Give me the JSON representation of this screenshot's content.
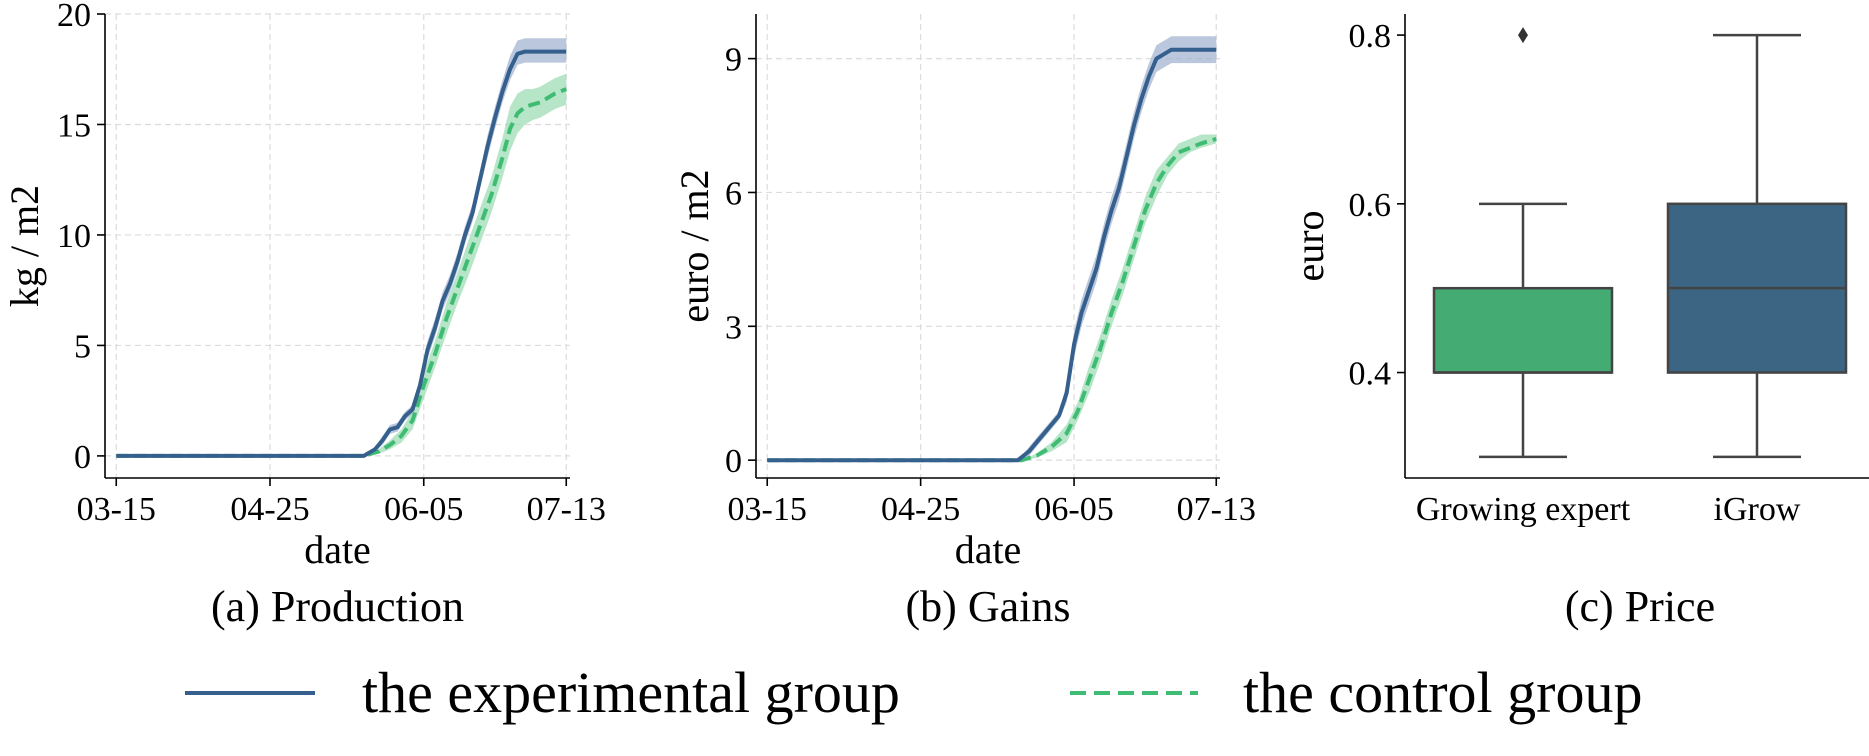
{
  "colors": {
    "experimental": "#355f8d",
    "experimental_band": "#a3b4d2",
    "control": "#3fbc73",
    "control_band": "#9edcb4",
    "box_expert": "#44ab72",
    "box_igrow": "#3b6583",
    "grid": "#dcdcdc",
    "axis": "#000000",
    "whisker": "#444444"
  },
  "legend": {
    "experimental_label": "the experimental group",
    "control_label": "the control group"
  },
  "chart_data": [
    {
      "type": "line",
      "caption": "(a) Production",
      "xlabel": "date",
      "ylabel": "kg / m2",
      "x_ticks": [
        "03-15",
        "04-25",
        "06-05",
        "07-13"
      ],
      "y_ticks": [
        0,
        5,
        10,
        15,
        20
      ],
      "xlim": [
        "03-12",
        "07-14"
      ],
      "ylim": [
        -1,
        20
      ],
      "grid": true,
      "series": [
        {
          "name": "the experimental group",
          "style": "solid",
          "x": [
            "03-15",
            "05-20",
            "05-23",
            "05-25",
            "05-27",
            "05-29",
            "05-31",
            "06-02",
            "06-04",
            "06-06",
            "06-08",
            "06-10",
            "06-12",
            "06-14",
            "06-16",
            "06-18",
            "06-20",
            "06-22",
            "06-24",
            "06-26",
            "06-28",
            "06-30",
            "07-02",
            "07-04",
            "07-06",
            "07-09",
            "07-13"
          ],
          "y": [
            0,
            0,
            0.3,
            0.7,
            1.2,
            1.3,
            1.8,
            2.1,
            3.2,
            4.8,
            5.8,
            7.0,
            7.8,
            8.8,
            10.0,
            11.0,
            12.5,
            14.0,
            15.3,
            16.5,
            17.5,
            18.2,
            18.3,
            18.3,
            18.3,
            18.3,
            18.3
          ],
          "lower": [
            0,
            0,
            0.2,
            0.5,
            1.0,
            1.1,
            1.6,
            1.9,
            2.9,
            4.4,
            5.4,
            6.6,
            7.4,
            8.4,
            9.6,
            10.6,
            12.1,
            13.5,
            14.8,
            16.0,
            17.0,
            17.7,
            17.8,
            17.8,
            17.8,
            17.8,
            17.8
          ],
          "upper": [
            0,
            0,
            0.4,
            0.9,
            1.4,
            1.5,
            2.0,
            2.3,
            3.5,
            5.2,
            6.2,
            7.4,
            8.2,
            9.2,
            10.4,
            11.4,
            12.9,
            14.5,
            15.8,
            17.0,
            18.1,
            18.8,
            18.9,
            18.9,
            18.9,
            18.9,
            18.9
          ]
        },
        {
          "name": "the control group",
          "style": "dashed",
          "x": [
            "03-15",
            "05-20",
            "05-24",
            "05-27",
            "05-30",
            "06-02",
            "06-05",
            "06-08",
            "06-11",
            "06-14",
            "06-17",
            "06-20",
            "06-23",
            "06-26",
            "06-28",
            "06-30",
            "07-02",
            "07-04",
            "07-06",
            "07-08",
            "07-10",
            "07-13"
          ],
          "y": [
            0,
            0,
            0.2,
            0.5,
            0.9,
            1.6,
            3.2,
            4.6,
            6.2,
            7.6,
            9.0,
            10.4,
            11.8,
            13.5,
            14.8,
            15.5,
            15.8,
            15.9,
            16.0,
            16.2,
            16.4,
            16.6
          ],
          "lower": [
            0,
            0,
            0.1,
            0.3,
            0.6,
            1.2,
            2.6,
            4.0,
            5.5,
            6.9,
            8.2,
            9.6,
            11.0,
            12.6,
            13.8,
            14.6,
            15.0,
            15.2,
            15.3,
            15.5,
            15.7,
            15.9
          ],
          "upper": [
            0,
            0,
            0.3,
            0.7,
            1.2,
            2.0,
            3.8,
            5.2,
            6.9,
            8.3,
            9.8,
            11.2,
            12.6,
            14.4,
            15.8,
            16.4,
            16.6,
            16.6,
            16.7,
            16.9,
            17.1,
            17.3
          ]
        }
      ]
    },
    {
      "type": "line",
      "caption": "(b) Gains",
      "xlabel": "date",
      "ylabel": "euro / m2",
      "x_ticks": [
        "03-15",
        "04-25",
        "06-05",
        "07-13"
      ],
      "y_ticks": [
        0,
        3,
        6,
        9
      ],
      "xlim": [
        "03-12",
        "07-14"
      ],
      "ylim": [
        -0.4,
        10
      ],
      "grid": true,
      "series": [
        {
          "name": "the experimental group",
          "style": "solid",
          "x": [
            "03-15",
            "05-21",
            "05-24",
            "05-26",
            "05-28",
            "05-30",
            "06-01",
            "06-03",
            "06-05",
            "06-07",
            "06-09",
            "06-11",
            "06-13",
            "06-15",
            "06-17",
            "06-19",
            "06-21",
            "06-23",
            "06-25",
            "06-27",
            "06-29",
            "07-01",
            "07-04",
            "07-08",
            "07-13"
          ],
          "y": [
            0,
            0,
            0.2,
            0.4,
            0.6,
            0.8,
            1.0,
            1.5,
            2.6,
            3.3,
            3.8,
            4.3,
            5.0,
            5.6,
            6.1,
            6.8,
            7.5,
            8.1,
            8.6,
            9.0,
            9.1,
            9.2,
            9.2,
            9.2,
            9.2
          ],
          "lower": [
            0,
            0,
            0.1,
            0.3,
            0.5,
            0.7,
            0.9,
            1.3,
            2.3,
            3.0,
            3.5,
            4.0,
            4.7,
            5.3,
            5.8,
            6.5,
            7.2,
            7.8,
            8.3,
            8.7,
            8.8,
            8.9,
            8.9,
            8.9,
            8.9
          ],
          "upper": [
            0,
            0,
            0.3,
            0.5,
            0.7,
            0.9,
            1.1,
            1.7,
            2.9,
            3.6,
            4.1,
            4.6,
            5.3,
            5.9,
            6.4,
            7.1,
            7.8,
            8.4,
            8.9,
            9.3,
            9.4,
            9.5,
            9.5,
            9.5,
            9.5
          ]
        },
        {
          "name": "the control group",
          "style": "dashed",
          "x": [
            "03-15",
            "05-22",
            "05-26",
            "05-30",
            "06-03",
            "06-06",
            "06-09",
            "06-12",
            "06-15",
            "06-18",
            "06-21",
            "06-24",
            "06-27",
            "06-30",
            "07-03",
            "07-06",
            "07-09",
            "07-13"
          ],
          "y": [
            0,
            0,
            0.1,
            0.3,
            0.6,
            1.1,
            1.8,
            2.5,
            3.3,
            4.0,
            4.8,
            5.6,
            6.2,
            6.6,
            6.9,
            7.0,
            7.1,
            7.2
          ],
          "lower": [
            0,
            0,
            0.05,
            0.2,
            0.4,
            0.9,
            1.5,
            2.2,
            3.0,
            3.7,
            4.5,
            5.3,
            5.9,
            6.4,
            6.7,
            6.9,
            7.0,
            7.1
          ],
          "upper": [
            0,
            0,
            0.15,
            0.4,
            0.8,
            1.3,
            2.1,
            2.8,
            3.6,
            4.3,
            5.1,
            5.9,
            6.5,
            6.8,
            7.1,
            7.2,
            7.3,
            7.3
          ]
        }
      ]
    },
    {
      "type": "box",
      "caption": "(c) Price",
      "ylabel": "euro",
      "categories": [
        "Growing expert",
        "iGrow"
      ],
      "y_ticks": [
        0.4,
        0.6,
        0.8
      ],
      "ylim": [
        0.275,
        0.825
      ],
      "boxes": [
        {
          "name": "Growing expert",
          "whisker_low": 0.3,
          "q1": 0.4,
          "median": 0.4,
          "q3": 0.5,
          "whisker_high": 0.6,
          "outliers": [
            0.8
          ]
        },
        {
          "name": "iGrow",
          "whisker_low": 0.3,
          "q1": 0.4,
          "median": 0.5,
          "q3": 0.6,
          "whisker_high": 0.8,
          "outliers": []
        }
      ]
    }
  ]
}
